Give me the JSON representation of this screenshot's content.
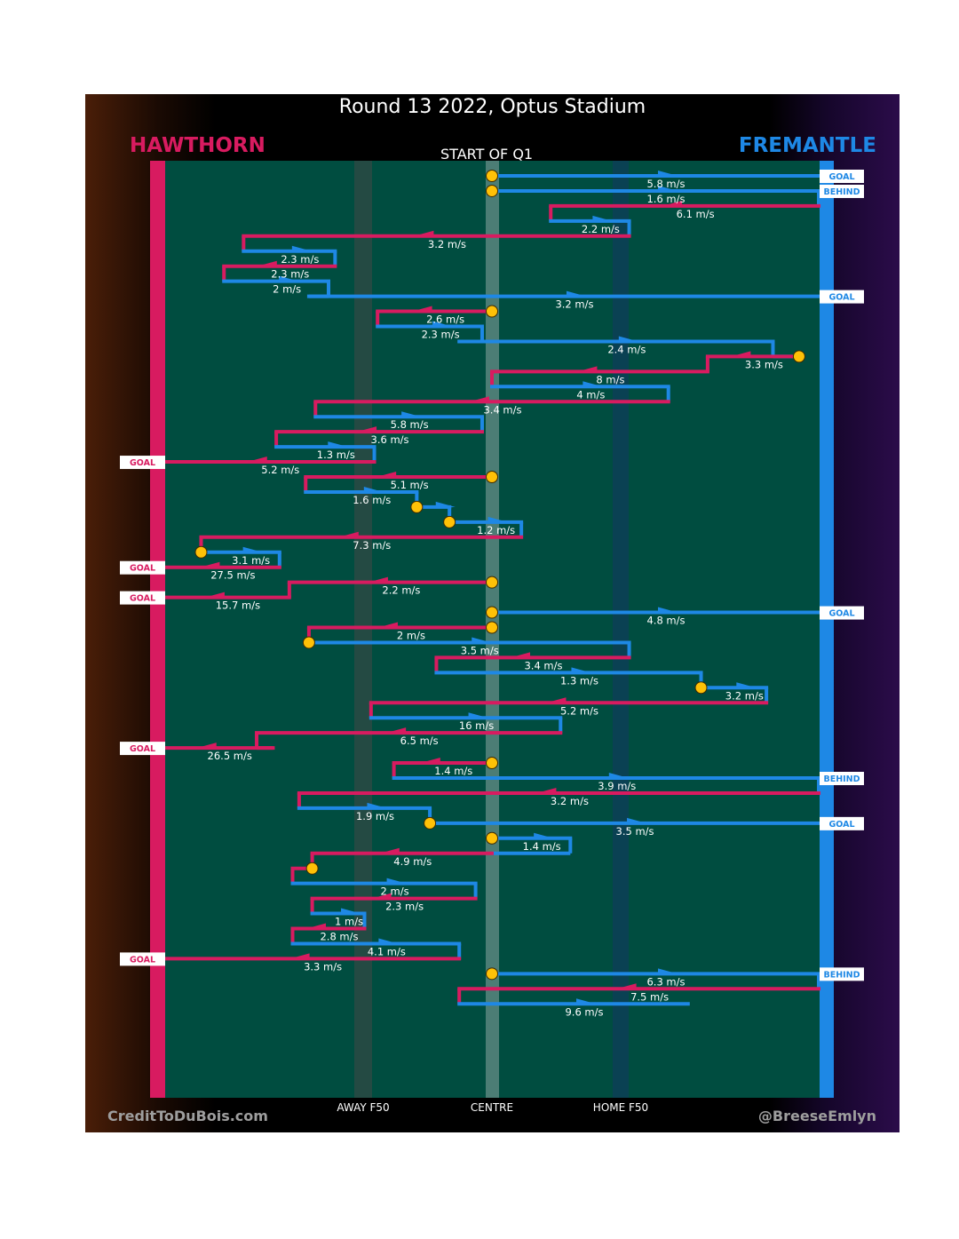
{
  "title": "Round 13 2022, Optus Stadium",
  "home_team": "HAWTHORN",
  "away_team": "FREMANTLE",
  "quarter_label": "START OF Q1",
  "credit": "CreditToDuBois.com",
  "handle": "@BreeseEmlyn",
  "colors": {
    "home": "#d81b60",
    "away": "#1e88e5",
    "field": "#004d40",
    "marker": "#ffc107"
  },
  "chart_data": {
    "type": "line",
    "title": "Round 13 2022, Optus Stadium",
    "x_axis_labels": [
      "AWAY F50",
      "CENTRE",
      "HOME F50"
    ],
    "outcome_labels": [
      "GOAL",
      "BEHIND"
    ],
    "chains": [
      {
        "team": "away",
        "from": 0,
        "to": 100,
        "speed": "5.8 m/s",
        "end": "GOAL",
        "start_marker": true
      },
      {
        "team": "away",
        "from": 0,
        "to": 100,
        "speed": "1.6 m/s",
        "end": "BEHIND",
        "start_marker": true
      },
      {
        "team": "home",
        "from": 100,
        "to": 18,
        "speed": "6.1 m/s"
      },
      {
        "team": "away",
        "from": 18,
        "to": 42,
        "speed": "2.2 m/s"
      },
      {
        "team": "home",
        "from": 42,
        "to": -76,
        "speed": "3.2 m/s"
      },
      {
        "team": "away",
        "from": -76,
        "to": -48,
        "speed": "2.3 m/s"
      },
      {
        "team": "home",
        "from": -48,
        "to": -82,
        "speed": "2.3 m/s"
      },
      {
        "team": "away",
        "from": -82,
        "to": -50,
        "speed": "2 m/s"
      },
      {
        "team": "away",
        "from": -56,
        "to": 100,
        "speed": "3.2 m/s",
        "end": "GOAL"
      },
      {
        "team": "home",
        "from": 0,
        "to": -35,
        "speed": "2.6 m/s",
        "start_marker": true
      },
      {
        "team": "away",
        "from": -35,
        "to": -3,
        "speed": "2.3 m/s"
      },
      {
        "team": "away",
        "from": -10,
        "to": 86,
        "speed": "2.4 m/s"
      },
      {
        "team": "home",
        "from": 94,
        "to": 66,
        "speed": "3.3 m/s",
        "start_marker": true
      },
      {
        "team": "home",
        "from": 66,
        "to": 0,
        "speed": "8 m/s"
      },
      {
        "team": "away",
        "from": 0,
        "to": 54,
        "speed": "4 m/s"
      },
      {
        "team": "home",
        "from": 54,
        "to": -54,
        "speed": "3.4 m/s"
      },
      {
        "team": "away",
        "from": -54,
        "to": -3,
        "speed": "5.8 m/s"
      },
      {
        "team": "home",
        "from": -3,
        "to": -66,
        "speed": "3.6 m/s"
      },
      {
        "team": "away",
        "from": -66,
        "to": -36,
        "speed": "1.3 m/s"
      },
      {
        "team": "home",
        "from": -36,
        "to": -100,
        "speed": "5.2 m/s",
        "end": "GOAL"
      },
      {
        "team": "home",
        "from": 0,
        "to": -57,
        "speed": "5.1 m/s",
        "start_marker": true
      },
      {
        "team": "away",
        "from": -57,
        "to": -23,
        "speed": "1.6 m/s"
      },
      {
        "team": "away",
        "from": -23,
        "to": -13,
        "speed": "",
        "start_marker": true
      },
      {
        "team": "away",
        "from": -13,
        "to": 9,
        "speed": "1.2 m/s",
        "start_marker": true
      },
      {
        "team": "home",
        "from": 9,
        "to": -89,
        "speed": "7.3 m/s"
      },
      {
        "team": "away",
        "from": -89,
        "to": -65,
        "speed": "3.1 m/s",
        "start_marker": true
      },
      {
        "team": "home",
        "from": -65,
        "to": -100,
        "speed": "27.5 m/s",
        "end": "GOAL"
      },
      {
        "team": "home",
        "from": 0,
        "to": -62,
        "speed": "2.2 m/s",
        "start_marker": true
      },
      {
        "team": "home",
        "from": -62,
        "to": -100,
        "speed": "15.7 m/s",
        "end": "GOAL"
      },
      {
        "team": "away",
        "from": 0,
        "to": 100,
        "speed": "4.8 m/s",
        "end": "GOAL",
        "start_marker": true
      },
      {
        "team": "home",
        "from": 0,
        "to": -56,
        "speed": "2 m/s",
        "start_marker": true
      },
      {
        "team": "away",
        "from": -56,
        "to": 42,
        "speed": "3.5 m/s",
        "start_marker": true
      },
      {
        "team": "home",
        "from": 42,
        "to": -17,
        "speed": "3.4 m/s"
      },
      {
        "team": "away",
        "from": -17,
        "to": 64,
        "speed": "1.3 m/s"
      },
      {
        "team": "away",
        "from": 64,
        "to": 84,
        "speed": "3.2 m/s",
        "start_marker": true
      },
      {
        "team": "home",
        "from": 84,
        "to": -37,
        "speed": "5.2 m/s"
      },
      {
        "team": "away",
        "from": -37,
        "to": 21,
        "speed": "16 m/s"
      },
      {
        "team": "home",
        "from": 21,
        "to": -72,
        "speed": "6.5 m/s"
      },
      {
        "team": "home",
        "from": -67,
        "to": -100,
        "speed": "26.5 m/s",
        "end": "GOAL"
      },
      {
        "team": "home",
        "from": 0,
        "to": -30,
        "speed": "1.4 m/s",
        "start_marker": true
      },
      {
        "team": "away",
        "from": -30,
        "to": 100,
        "speed": "3.9 m/s",
        "end": "BEHIND"
      },
      {
        "team": "home",
        "from": 100,
        "to": -59,
        "speed": "3.2 m/s"
      },
      {
        "team": "away",
        "from": -59,
        "to": -19,
        "speed": "1.9 m/s"
      },
      {
        "team": "away",
        "from": -19,
        "to": 100,
        "speed": "3.5 m/s",
        "end": "GOAL",
        "start_marker": true
      },
      {
        "team": "away",
        "from": 0,
        "to": 24,
        "speed": "1.4 m/s",
        "start_marker": true
      },
      {
        "team": "home",
        "from": 0,
        "to": -55,
        "speed": "4.9 m/s"
      },
      {
        "team": "home",
        "from": -55,
        "to": -61,
        "speed": "",
        "start_marker": true
      },
      {
        "team": "away",
        "from": -61,
        "to": -5,
        "speed": "2 m/s"
      },
      {
        "team": "home",
        "from": -5,
        "to": -55,
        "speed": "2.3 m/s"
      },
      {
        "team": "away",
        "from": -55,
        "to": -39,
        "speed": "1 m/s"
      },
      {
        "team": "home",
        "from": -39,
        "to": -61,
        "speed": "2.8 m/s"
      },
      {
        "team": "away",
        "from": -61,
        "to": -10,
        "speed": "4.1 m/s"
      },
      {
        "team": "home",
        "from": -10,
        "to": -100,
        "speed": "3.3 m/s",
        "end": "GOAL"
      },
      {
        "team": "away",
        "from": 0,
        "to": 100,
        "speed": "6.3 m/s",
        "end": "BEHIND",
        "start_marker": true
      },
      {
        "team": "home",
        "from": 100,
        "to": -10,
        "speed": "7.5 m/s"
      },
      {
        "team": "away",
        "from": -10,
        "to": 60,
        "speed": "9.6 m/s"
      }
    ]
  }
}
